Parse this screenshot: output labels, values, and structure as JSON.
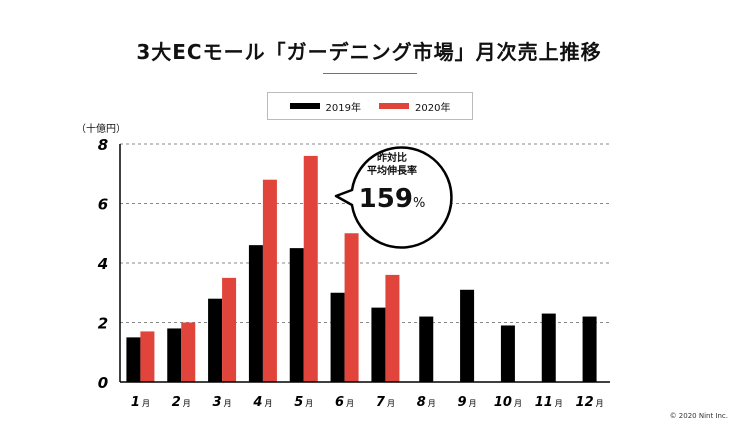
{
  "chart_data": {
    "type": "bar",
    "title": "3大ECモール「ガーデニング市場」月次売上推移",
    "ylabel": "（十億円）",
    "xlabel": "",
    "ylim": [
      0,
      8
    ],
    "yticks": [
      "0",
      "2",
      "4",
      "6",
      "8"
    ],
    "grid": true,
    "legend_placement": "top-center",
    "month_suffix": "月",
    "categories": [
      "1",
      "2",
      "3",
      "4",
      "5",
      "6",
      "7",
      "8",
      "9",
      "10",
      "11",
      "12"
    ],
    "series": [
      {
        "name": "2019年",
        "color": "#000000",
        "values": [
          1.5,
          1.8,
          2.8,
          4.6,
          4.5,
          3.0,
          2.5,
          2.2,
          3.1,
          1.9,
          2.3,
          2.2
        ]
      },
      {
        "name": "2020年",
        "color": "#e0443b",
        "values": [
          1.7,
          2.0,
          3.5,
          6.8,
          7.6,
          5.0,
          3.6,
          null,
          null,
          null,
          null,
          null
        ]
      }
    ],
    "annotation": {
      "line1": "昨対比",
      "line2": "平均伸長率",
      "value": "159",
      "unit": "%"
    }
  },
  "copyright": "© 2020 Nint Inc."
}
